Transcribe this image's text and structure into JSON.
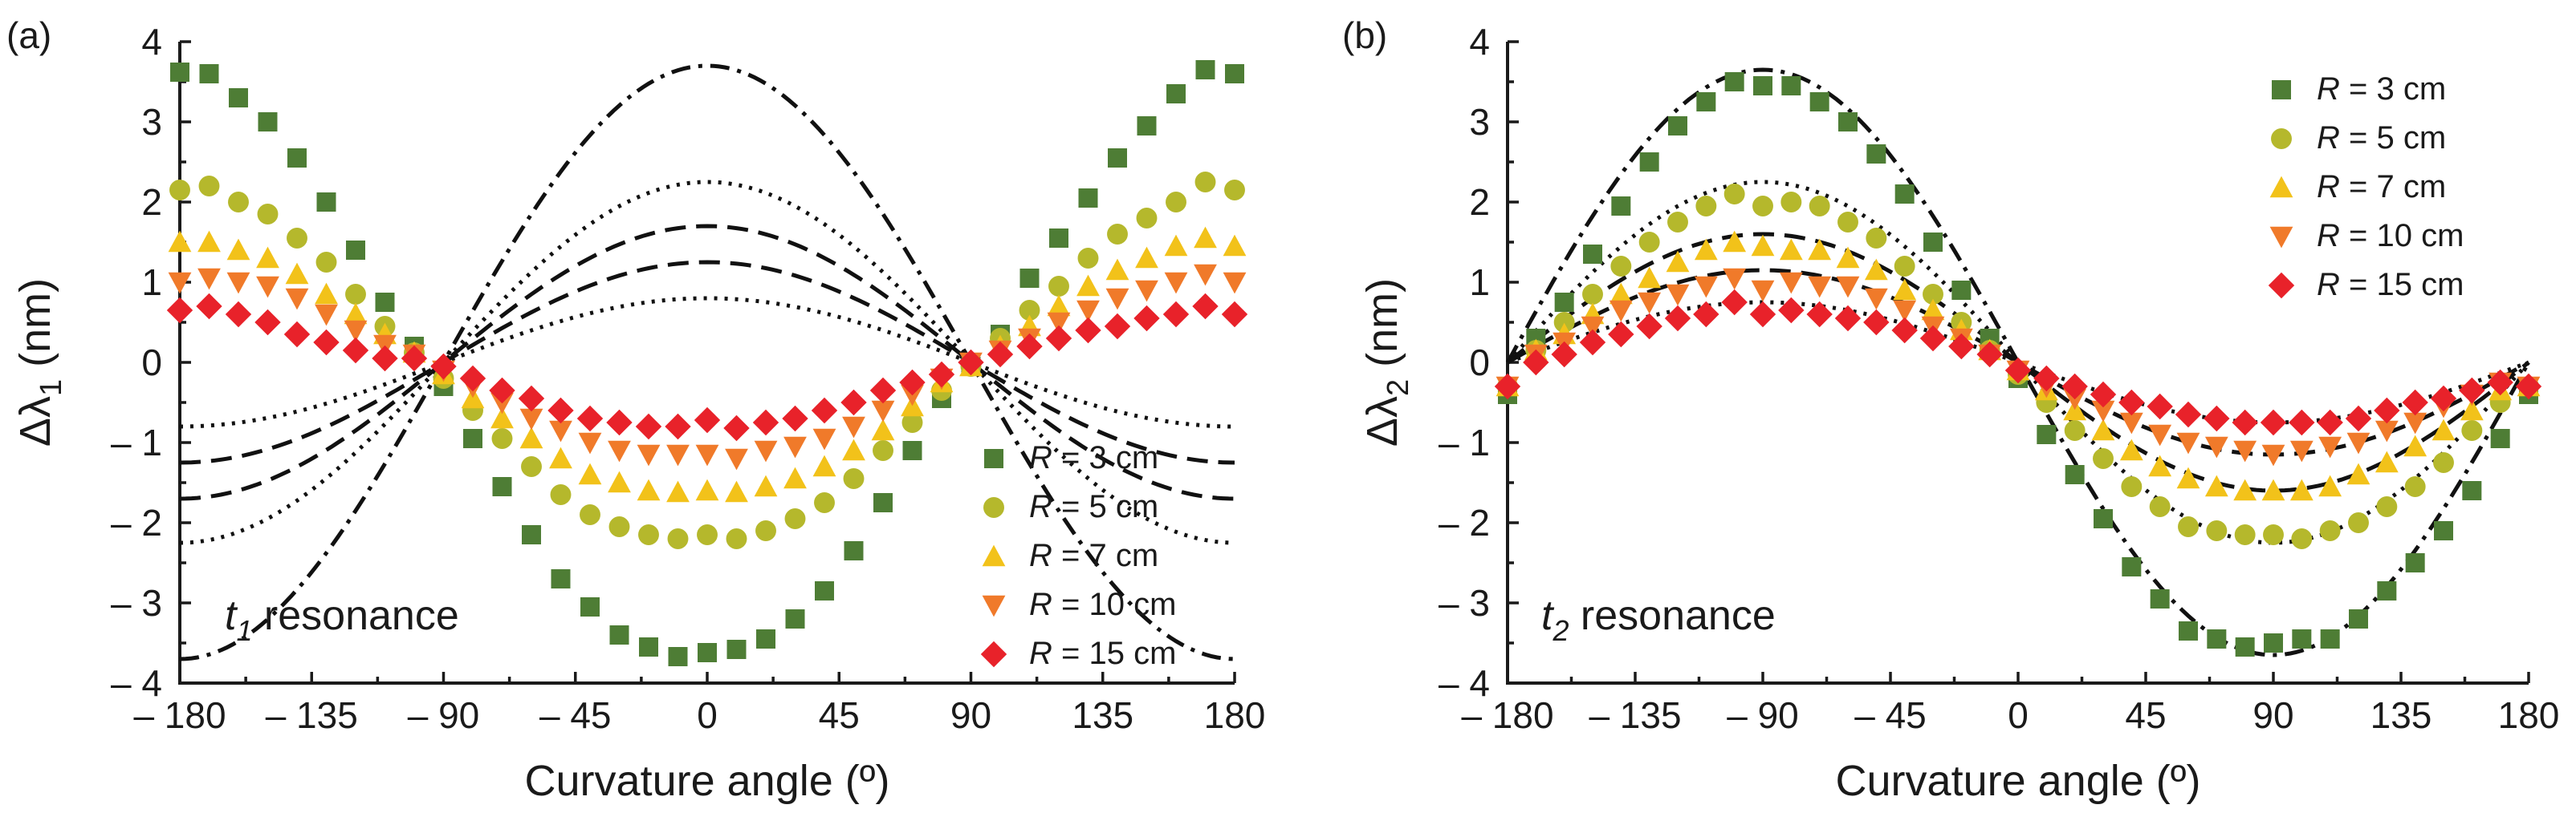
{
  "figure": {
    "colors": {
      "R = 3 cm": "#4e7d35",
      "R = 5 cm": "#b5b82c",
      "R = 7 cm": "#f2c21a",
      "R = 10 cm": "#f07a2a",
      "R = 15 cm": "#e8222a"
    },
    "marker_names": [
      "square-marker",
      "circle-marker",
      "triangle-up-marker",
      "triangle-down-marker",
      "diamond-marker"
    ]
  },
  "chart_data": [
    {
      "type": "scatter",
      "panel_label": "(a)",
      "xlabel": "Curvature angle (º)",
      "ylabel_main": "Δλ",
      "ylabel_sub": "1",
      "ylabel_unit": " (nm)",
      "xlim": [
        -180,
        180
      ],
      "ylim": [
        -4,
        4
      ],
      "xticks": [
        -180,
        -135,
        -90,
        -45,
        0,
        45,
        90,
        135,
        180
      ],
      "xtick_labels": [
        "– 180",
        "– 135",
        "– 90",
        "– 45",
        "0",
        "45",
        "90",
        "135",
        "180"
      ],
      "yticks": [
        -4,
        -3,
        -2,
        -1,
        0,
        1,
        2,
        3,
        4
      ],
      "ytick_labels": [
        "– 4",
        "– 3",
        "– 2",
        "– 1",
        "0",
        "1",
        "2",
        "3",
        "4"
      ],
      "legend_position": "lower-right",
      "annotation_italic": "t",
      "annotation_sub": "1",
      "annotation_rest": " resonance",
      "fit_shape": "cosine",
      "x": [
        -180,
        -170,
        -160,
        -150,
        -140,
        -130,
        -120,
        -110,
        -100,
        -90,
        -80,
        -70,
        -60,
        -50,
        -40,
        -30,
        -20,
        -10,
        0,
        10,
        20,
        30,
        40,
        50,
        60,
        70,
        80,
        90,
        100,
        110,
        120,
        130,
        140,
        150,
        160,
        170,
        180
      ],
      "series": [
        {
          "name": "R = 3 cm",
          "label_italic": "R",
          "label_rest": " = 3 cm",
          "marker": "square",
          "fit_style": "dashdot",
          "amplitude": 3.7,
          "values": [
            3.62,
            3.6,
            3.3,
            3.0,
            2.55,
            2.0,
            1.4,
            0.75,
            0.2,
            -0.3,
            -0.95,
            -1.55,
            -2.15,
            -2.7,
            -3.05,
            -3.4,
            -3.55,
            -3.67,
            -3.62,
            -3.58,
            -3.45,
            -3.2,
            -2.85,
            -2.35,
            -1.75,
            -1.1,
            -0.45,
            -0.05,
            0.35,
            1.05,
            1.55,
            2.05,
            2.55,
            2.95,
            3.35,
            3.65,
            3.6
          ]
        },
        {
          "name": "R = 5 cm",
          "label_italic": "R",
          "label_rest": " = 5 cm",
          "marker": "circle",
          "fit_style": "dotted",
          "amplitude": 2.25,
          "values": [
            2.15,
            2.2,
            2.0,
            1.85,
            1.55,
            1.25,
            0.85,
            0.45,
            0.12,
            -0.2,
            -0.6,
            -0.95,
            -1.3,
            -1.65,
            -1.9,
            -2.05,
            -2.15,
            -2.2,
            -2.15,
            -2.2,
            -2.1,
            -1.95,
            -1.75,
            -1.45,
            -1.1,
            -0.75,
            -0.35,
            -0.05,
            0.3,
            0.65,
            0.95,
            1.3,
            1.6,
            1.8,
            2.0,
            2.25,
            2.15
          ]
        },
        {
          "name": "R = 7 cm",
          "label_italic": "R",
          "label_rest": " = 7 cm",
          "marker": "triangle-up",
          "fit_style": "dashed",
          "amplitude": 1.7,
          "values": [
            1.5,
            1.5,
            1.4,
            1.3,
            1.1,
            0.85,
            0.6,
            0.35,
            0.12,
            -0.15,
            -0.45,
            -0.7,
            -0.95,
            -1.2,
            -1.4,
            -1.5,
            -1.6,
            -1.62,
            -1.6,
            -1.62,
            -1.55,
            -1.45,
            -1.3,
            -1.1,
            -0.85,
            -0.55,
            -0.25,
            -0.05,
            0.2,
            0.45,
            0.7,
            0.95,
            1.15,
            1.3,
            1.45,
            1.55,
            1.45
          ]
        },
        {
          "name": "R = 10 cm",
          "label_italic": "R",
          "label_rest": " = 10 cm",
          "marker": "triangle-down",
          "fit_style": "dashed",
          "amplitude": 1.25,
          "values": [
            1.0,
            1.05,
            1.0,
            0.95,
            0.8,
            0.6,
            0.4,
            0.22,
            0.1,
            -0.1,
            -0.3,
            -0.5,
            -0.7,
            -0.85,
            -1.0,
            -1.1,
            -1.15,
            -1.15,
            -1.15,
            -1.2,
            -1.1,
            -1.05,
            -0.95,
            -0.8,
            -0.6,
            -0.4,
            -0.2,
            0.0,
            0.15,
            0.3,
            0.5,
            0.65,
            0.8,
            0.9,
            1.0,
            1.1,
            1.0
          ]
        },
        {
          "name": "R = 15 cm",
          "label_italic": "R",
          "label_rest": " = 15 cm",
          "marker": "diamond",
          "fit_style": "dotted",
          "amplitude": 0.8,
          "values": [
            0.65,
            0.7,
            0.6,
            0.5,
            0.35,
            0.25,
            0.15,
            0.05,
            0.05,
            -0.05,
            -0.2,
            -0.35,
            -0.45,
            -0.6,
            -0.7,
            -0.75,
            -0.8,
            -0.8,
            -0.72,
            -0.82,
            -0.75,
            -0.7,
            -0.6,
            -0.5,
            -0.35,
            -0.25,
            -0.15,
            0.0,
            0.1,
            0.2,
            0.3,
            0.4,
            0.45,
            0.55,
            0.6,
            0.7,
            0.6
          ]
        }
      ]
    },
    {
      "type": "scatter",
      "panel_label": "(b)",
      "xlabel": "Curvature angle (º)",
      "ylabel_main": "Δλ",
      "ylabel_sub": "2",
      "ylabel_unit": " (nm)",
      "xlim": [
        -180,
        180
      ],
      "ylim": [
        -4,
        4
      ],
      "xticks": [
        -180,
        -135,
        -90,
        -45,
        0,
        45,
        90,
        135,
        180
      ],
      "xtick_labels": [
        "– 180",
        "– 135",
        "– 90",
        "– 45",
        "0",
        "45",
        "90",
        "135",
        "180"
      ],
      "yticks": [
        -4,
        -3,
        -2,
        -1,
        0,
        1,
        2,
        3,
        4
      ],
      "ytick_labels": [
        "– 4",
        "– 3",
        "– 2",
        "– 1",
        "0",
        "1",
        "2",
        "3",
        "4"
      ],
      "legend_position": "upper-right",
      "annotation_italic": "t",
      "annotation_sub": "2",
      "annotation_rest": " resonance",
      "fit_shape": "negative-sine",
      "x": [
        -180,
        -170,
        -160,
        -150,
        -140,
        -130,
        -120,
        -110,
        -100,
        -90,
        -80,
        -70,
        -60,
        -50,
        -40,
        -30,
        -20,
        -10,
        0,
        10,
        20,
        30,
        40,
        50,
        60,
        70,
        80,
        90,
        100,
        110,
        120,
        130,
        140,
        150,
        160,
        170,
        180
      ],
      "series": [
        {
          "name": "R = 3 cm",
          "label_italic": "R",
          "label_rest": " = 3 cm",
          "marker": "square",
          "fit_style": "dashdot",
          "amplitude": 3.65,
          "values": [
            -0.4,
            0.3,
            0.75,
            1.35,
            1.95,
            2.5,
            2.95,
            3.25,
            3.5,
            3.45,
            3.45,
            3.25,
            3.0,
            2.6,
            2.1,
            1.5,
            0.9,
            0.3,
            -0.2,
            -0.9,
            -1.4,
            -1.95,
            -2.55,
            -2.95,
            -3.35,
            -3.45,
            -3.55,
            -3.5,
            -3.45,
            -3.45,
            -3.2,
            -2.85,
            -2.5,
            -2.1,
            -1.6,
            -0.95,
            -0.4
          ]
        },
        {
          "name": "R = 5 cm",
          "label_italic": "R",
          "label_rest": " = 5 cm",
          "marker": "circle",
          "fit_style": "dotted",
          "amplitude": 2.25,
          "values": [
            -0.3,
            0.15,
            0.5,
            0.85,
            1.2,
            1.5,
            1.75,
            1.95,
            2.1,
            1.95,
            2.0,
            1.95,
            1.75,
            1.55,
            1.2,
            0.85,
            0.5,
            0.15,
            -0.15,
            -0.5,
            -0.85,
            -1.2,
            -1.55,
            -1.8,
            -2.05,
            -2.1,
            -2.15,
            -2.15,
            -2.2,
            -2.1,
            -2.0,
            -1.8,
            -1.55,
            -1.25,
            -0.85,
            -0.5,
            -0.3
          ]
        },
        {
          "name": "R = 7 cm",
          "label_italic": "R",
          "label_rest": " = 7 cm",
          "marker": "triangle-up",
          "fit_style": "dashed",
          "amplitude": 1.6,
          "values": [
            -0.3,
            0.15,
            0.35,
            0.6,
            0.85,
            1.05,
            1.25,
            1.4,
            1.5,
            1.45,
            1.4,
            1.4,
            1.3,
            1.15,
            0.9,
            0.65,
            0.4,
            0.15,
            -0.1,
            -0.35,
            -0.6,
            -0.85,
            -1.1,
            -1.3,
            -1.45,
            -1.55,
            -1.6,
            -1.6,
            -1.6,
            -1.55,
            -1.4,
            -1.25,
            -1.05,
            -0.85,
            -0.6,
            -0.35,
            -0.3
          ]
        },
        {
          "name": "R = 10 cm",
          "label_italic": "R",
          "label_rest": " = 10 cm",
          "marker": "triangle-down",
          "fit_style": "dashed",
          "amplitude": 1.15,
          "values": [
            -0.3,
            0.1,
            0.25,
            0.45,
            0.65,
            0.75,
            0.85,
            0.95,
            1.05,
            0.9,
            1.0,
            0.95,
            0.95,
            0.8,
            0.65,
            0.45,
            0.3,
            0.1,
            -0.1,
            -0.3,
            -0.45,
            -0.6,
            -0.75,
            -0.9,
            -1.0,
            -1.05,
            -1.1,
            -1.15,
            -1.1,
            -1.05,
            -1.0,
            -0.85,
            -0.75,
            -0.55,
            -0.4,
            -0.25,
            -0.3
          ]
        },
        {
          "name": "R = 15 cm",
          "label_italic": "R",
          "label_rest": " = 15 cm",
          "marker": "diamond",
          "fit_style": "dotted",
          "amplitude": 0.75,
          "values": [
            -0.3,
            0.0,
            0.1,
            0.25,
            0.35,
            0.45,
            0.55,
            0.6,
            0.75,
            0.6,
            0.65,
            0.6,
            0.55,
            0.5,
            0.4,
            0.3,
            0.2,
            0.1,
            -0.1,
            -0.2,
            -0.3,
            -0.4,
            -0.5,
            -0.55,
            -0.65,
            -0.7,
            -0.75,
            -0.75,
            -0.75,
            -0.75,
            -0.7,
            -0.6,
            -0.5,
            -0.45,
            -0.35,
            -0.25,
            -0.3
          ]
        }
      ]
    }
  ]
}
